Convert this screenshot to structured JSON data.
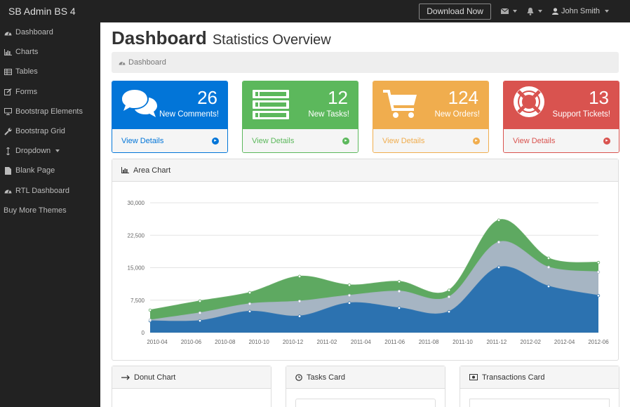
{
  "app": {
    "brand": "SB Admin BS 4",
    "download_label": "Download Now",
    "user_name": "John Smith"
  },
  "sidebar": {
    "items": [
      {
        "label": "Dashboard",
        "icon": "dashboard-icon"
      },
      {
        "label": "Charts",
        "icon": "bar-chart-icon"
      },
      {
        "label": "Tables",
        "icon": "table-icon"
      },
      {
        "label": "Forms",
        "icon": "edit-icon"
      },
      {
        "label": "Bootstrap Elements",
        "icon": "desktop-icon"
      },
      {
        "label": "Bootstrap Grid",
        "icon": "wrench-icon"
      },
      {
        "label": "Dropdown",
        "icon": "arrows-v-icon"
      },
      {
        "label": "Blank Page",
        "icon": "file-icon"
      },
      {
        "label": "RTL Dashboard",
        "icon": "dashboard-icon"
      },
      {
        "label": "Buy More Themes",
        "icon": ""
      }
    ]
  },
  "header": {
    "title": "Dashboard",
    "subtitle": "Statistics Overview",
    "breadcrumb": "Dashboard"
  },
  "cards": [
    {
      "count": "26",
      "label": "New Comments!",
      "link": "View Details",
      "color": "#0275d8",
      "icon": "comments-icon"
    },
    {
      "count": "12",
      "label": "New Tasks!",
      "link": "View Details",
      "color": "#5cb85c",
      "icon": "tasks-icon"
    },
    {
      "count": "124",
      "label": "New Orders!",
      "link": "View Details",
      "color": "#f0ad4e",
      "icon": "shopping-cart-icon"
    },
    {
      "count": "13",
      "label": "Support Tickets!",
      "link": "View Details",
      "color": "#d9534f",
      "icon": "life-ring-icon"
    }
  ],
  "area_panel": {
    "title": "Area Chart"
  },
  "bottom_panels": {
    "donut": "Donut Chart",
    "tasks": "Tasks Card",
    "transactions": "Transactions Card"
  },
  "chart_data": {
    "type": "area",
    "title": "Area Chart",
    "x": [
      "2010-03",
      "2010-06",
      "2010-09",
      "2010-12",
      "2011-03",
      "2011-06",
      "2011-09",
      "2011-12",
      "2012-03",
      "2012-06"
    ],
    "xticks": [
      "2010-04",
      "2010-06",
      "2010-08",
      "2010-10",
      "2010-12",
      "2011-02",
      "2011-04",
      "2011-06",
      "2011-08",
      "2011-10",
      "2011-12",
      "2012-02",
      "2012-04",
      "2012-06"
    ],
    "yticks": [
      "0",
      "7,500",
      "15,000",
      "22,500",
      "30,000"
    ],
    "ylim": [
      0,
      30000
    ],
    "series": [
      {
        "values": [
          2700,
          2750,
          4900,
          3800,
          6850,
          5700,
          4850,
          15100,
          10700,
          8550
        ],
        "color": "#2c72b0"
      },
      {
        "values": [
          2900,
          4550,
          6650,
          7250,
          8600,
          9550,
          8250,
          20900,
          15100,
          14000
        ],
        "color": "#a6b5c3"
      },
      {
        "values": [
          5200,
          7300,
          9250,
          13000,
          11000,
          11800,
          9800,
          26000,
          17200,
          16200
        ],
        "color": "#5ea961"
      }
    ],
    "grid": true
  }
}
